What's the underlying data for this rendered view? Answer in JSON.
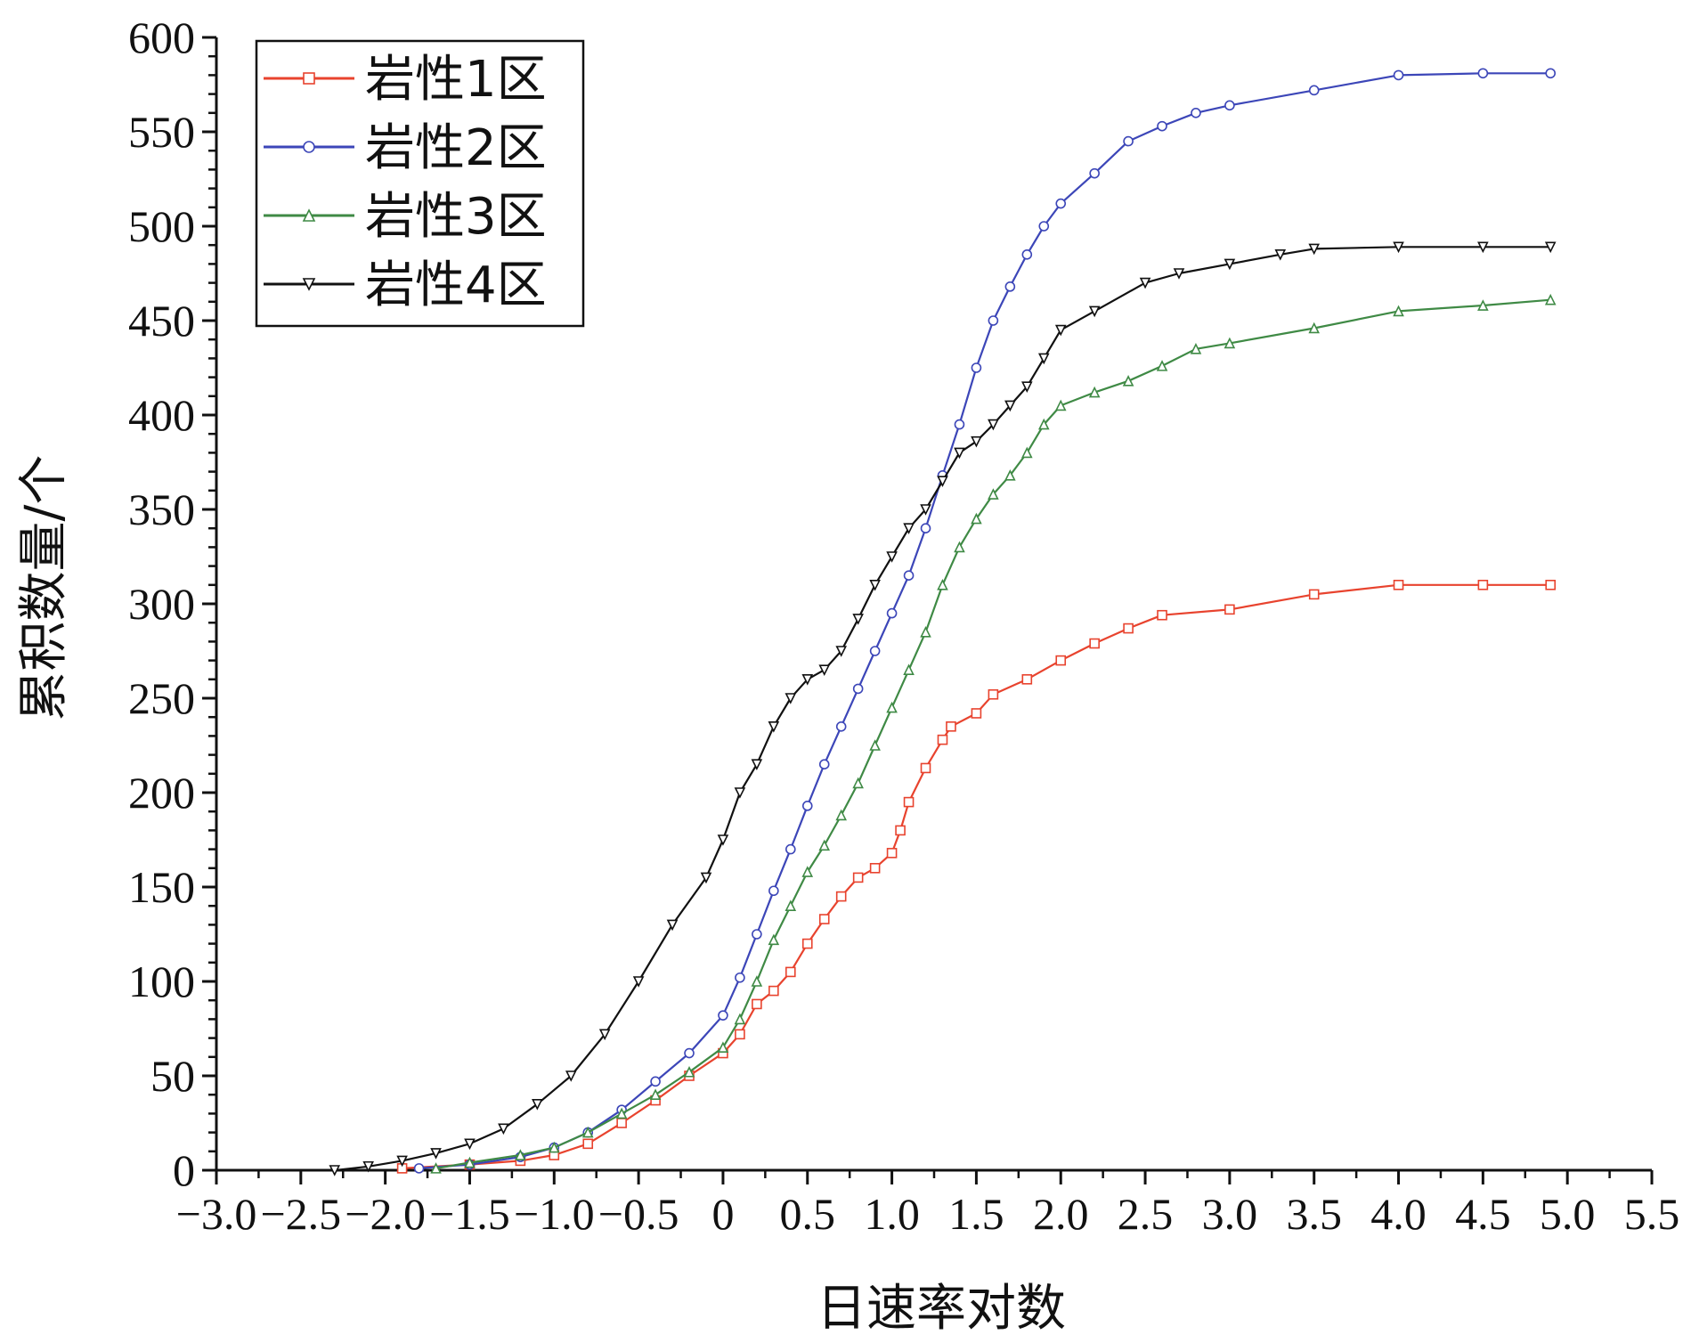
{
  "chart_data": {
    "type": "line",
    "title": "",
    "xlabel": "日速率对数",
    "ylabel": "累积数量/个",
    "xlim": [
      -3.0,
      5.5
    ],
    "ylim": [
      0,
      600
    ],
    "x_ticks": [
      -3.0,
      -2.5,
      -2.0,
      -1.5,
      -1.0,
      -0.5,
      0,
      0.5,
      1.0,
      1.5,
      2.0,
      2.5,
      3.0,
      3.5,
      4.0,
      4.5,
      5.0,
      5.5
    ],
    "x_tick_labels": [
      "−3.0",
      "−2.5",
      "−2.0",
      "−1.5",
      "−1.0",
      "−0.5",
      "0",
      "0.5",
      "1.0",
      "1.5",
      "2.0",
      "2.5",
      "3.0",
      "3.5",
      "4.0",
      "4.5",
      "5.0",
      "5.5"
    ],
    "y_ticks": [
      0,
      50,
      100,
      150,
      200,
      250,
      300,
      350,
      400,
      450,
      500,
      550,
      600
    ],
    "y_tick_labels": [
      "0",
      "50",
      "100",
      "150",
      "200",
      "250",
      "300",
      "350",
      "400",
      "450",
      "500",
      "550",
      "600"
    ],
    "grid": false,
    "legend_position": "top-left",
    "series": [
      {
        "name": "岩性1区",
        "color": "#e8432e",
        "marker": "square",
        "x": [
          -1.9,
          -1.5,
          -1.2,
          -1.0,
          -0.8,
          -0.6,
          -0.4,
          -0.2,
          0.0,
          0.1,
          0.2,
          0.3,
          0.4,
          0.5,
          0.6,
          0.7,
          0.8,
          0.9,
          1.0,
          1.05,
          1.1,
          1.2,
          1.3,
          1.35,
          1.5,
          1.6,
          1.8,
          2.0,
          2.2,
          2.4,
          2.6,
          3.0,
          3.5,
          4.0,
          4.5,
          4.9
        ],
        "y": [
          1,
          3,
          5,
          8,
          14,
          25,
          37,
          50,
          62,
          72,
          88,
          95,
          105,
          120,
          133,
          145,
          155,
          160,
          168,
          180,
          195,
          213,
          228,
          235,
          242,
          252,
          260,
          270,
          279,
          287,
          294,
          297,
          305,
          310,
          310,
          310
        ]
      },
      {
        "name": "岩性2区",
        "color": "#3c46b8",
        "marker": "circle",
        "x": [
          -1.8,
          -1.5,
          -1.2,
          -1.0,
          -0.8,
          -0.6,
          -0.4,
          -0.2,
          0.0,
          0.1,
          0.2,
          0.3,
          0.4,
          0.5,
          0.6,
          0.7,
          0.8,
          0.9,
          1.0,
          1.1,
          1.2,
          1.3,
          1.4,
          1.5,
          1.6,
          1.7,
          1.8,
          1.9,
          2.0,
          2.2,
          2.4,
          2.6,
          2.8,
          3.0,
          3.5,
          4.0,
          4.5,
          4.9
        ],
        "y": [
          1,
          3,
          7,
          12,
          20,
          32,
          47,
          62,
          82,
          102,
          125,
          148,
          170,
          193,
          215,
          235,
          255,
          275,
          295,
          315,
          340,
          368,
          395,
          425,
          450,
          468,
          485,
          500,
          512,
          528,
          545,
          553,
          560,
          564,
          572,
          580,
          581,
          581
        ]
      },
      {
        "name": "岩性3区",
        "color": "#3f8a45",
        "marker": "triangle",
        "x": [
          -1.7,
          -1.5,
          -1.2,
          -1.0,
          -0.8,
          -0.6,
          -0.4,
          -0.2,
          0.0,
          0.1,
          0.2,
          0.3,
          0.4,
          0.5,
          0.6,
          0.7,
          0.8,
          0.9,
          1.0,
          1.1,
          1.2,
          1.3,
          1.4,
          1.5,
          1.6,
          1.7,
          1.8,
          1.9,
          2.0,
          2.2,
          2.4,
          2.6,
          2.8,
          3.0,
          3.5,
          4.0,
          4.5,
          4.9
        ],
        "y": [
          1,
          4,
          8,
          12,
          20,
          30,
          40,
          52,
          65,
          80,
          100,
          122,
          140,
          158,
          172,
          188,
          205,
          225,
          245,
          265,
          285,
          310,
          330,
          345,
          358,
          368,
          380,
          395,
          405,
          412,
          418,
          426,
          435,
          438,
          446,
          455,
          458,
          461
        ]
      },
      {
        "name": "岩性4区",
        "color": "#111111",
        "marker": "triangle-down",
        "x": [
          -2.3,
          -2.1,
          -1.9,
          -1.7,
          -1.5,
          -1.3,
          -1.1,
          -0.9,
          -0.7,
          -0.5,
          -0.3,
          -0.1,
          0.0,
          0.1,
          0.2,
          0.3,
          0.4,
          0.5,
          0.6,
          0.7,
          0.8,
          0.9,
          1.0,
          1.1,
          1.2,
          1.3,
          1.4,
          1.5,
          1.6,
          1.7,
          1.8,
          1.9,
          2.0,
          2.2,
          2.5,
          2.7,
          3.0,
          3.3,
          3.5,
          4.0,
          4.5,
          4.9
        ],
        "y": [
          0,
          2,
          5,
          9,
          14,
          22,
          35,
          50,
          72,
          100,
          130,
          155,
          175,
          200,
          215,
          235,
          250,
          260,
          265,
          275,
          292,
          310,
          325,
          340,
          350,
          365,
          380,
          386,
          395,
          405,
          415,
          430,
          445,
          455,
          470,
          475,
          480,
          485,
          488,
          489,
          489,
          489
        ]
      }
    ]
  }
}
